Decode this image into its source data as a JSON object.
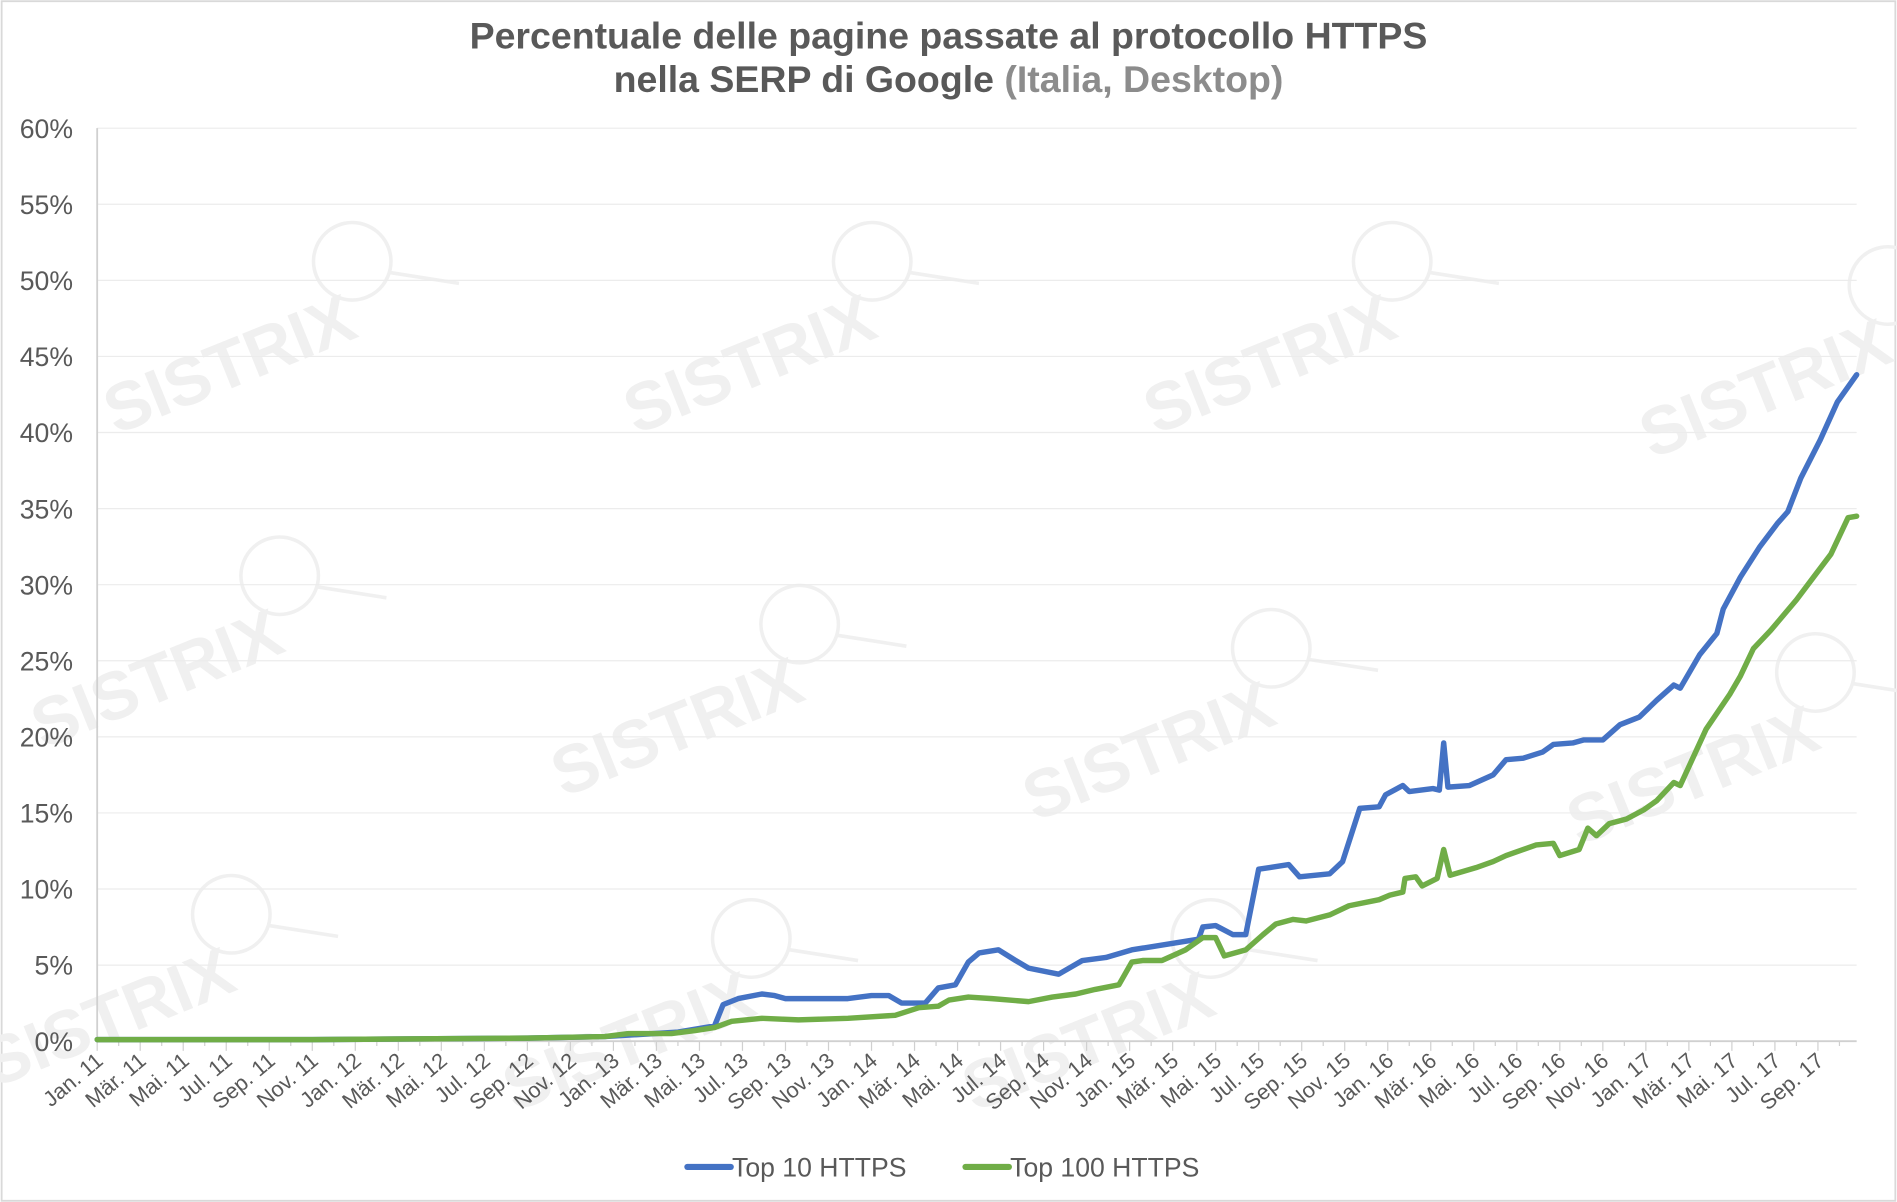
{
  "chart_data": {
    "type": "line",
    "title_line1": "Percentuale delle pagine passate al protocollo HTTPS",
    "title_line2": "nella SERP di Google",
    "title_suffix": " (Italia, Desktop)",
    "watermark": "SISTRIX",
    "xlabel": "",
    "ylabel": "",
    "x_unit": "months since Jan 2011",
    "xlim": [
      0,
      81.8
    ],
    "ylim": [
      0,
      60
    ],
    "y_ticks": [
      "0%",
      "5%",
      "10%",
      "15%",
      "20%",
      "25%",
      "30%",
      "35%",
      "40%",
      "45%",
      "50%",
      "55%",
      "60%"
    ],
    "x_tick_labels": [
      "Jan. 11",
      "Mär. 11",
      "Mai. 11",
      "Jul. 11",
      "Sep. 11",
      "Nov. 11",
      "Jan. 12",
      "Mär. 12",
      "Mai. 12",
      "Jul. 12",
      "Sep. 12",
      "Nov. 12",
      "Jan. 13",
      "Mär. 13",
      "Mai. 13",
      "Jul. 13",
      "Sep. 13",
      "Nov. 13",
      "Jan. 14",
      "Mär. 14",
      "Mai. 14",
      "Jul. 14",
      "Sep. 14",
      "Nov. 14",
      "Jan. 15",
      "Mär. 15",
      "Mai. 15",
      "Jul. 15",
      "Sep. 15",
      "Nov. 15",
      "Jan. 16",
      "Mär. 16",
      "Mai. 16",
      "Jul. 16",
      "Sep. 16",
      "Nov. 16",
      "Jan. 17",
      "Mär. 17",
      "Mai. 17",
      "Jul. 17",
      "Sep. 17"
    ],
    "grid": true,
    "legend_position": "bottom",
    "series": [
      {
        "name": "Top 10 HTTPS",
        "color": "#4472c4",
        "x": [
          0,
          10,
          20,
          23.6,
          27.0,
          28.7,
          29.1,
          29.8,
          30.9,
          31.5,
          32.0,
          34.9,
          36.0,
          36.8,
          37.4,
          38.5,
          39.1,
          39.9,
          40.5,
          41.0,
          41.9,
          42.7,
          43.3,
          44.7,
          45.8,
          46.9,
          48.1,
          51.2,
          51.4,
          52.0,
          52.8,
          53.4,
          54.0,
          55.4,
          55.9,
          57.3,
          57.9,
          58.7,
          59.6,
          59.9,
          60.7,
          61.0,
          62.1,
          62.4,
          62.6,
          62.8,
          63.8,
          64.9,
          65.5,
          66.3,
          67.2,
          67.7,
          68.6,
          69.1,
          70.0,
          70.8,
          71.7,
          72.5,
          73.3,
          73.6,
          74.5,
          75.3,
          75.6,
          76.4,
          77.3,
          78.1,
          78.6,
          79.2,
          80.1,
          80.9,
          81.8
        ],
        "y": [
          0.1,
          0.1,
          0.2,
          0.3,
          0.6,
          1.0,
          2.4,
          2.8,
          3.1,
          3.0,
          2.8,
          2.8,
          3.0,
          3.0,
          2.5,
          2.5,
          3.5,
          3.7,
          5.2,
          5.8,
          6.0,
          5.3,
          4.8,
          4.4,
          5.3,
          5.5,
          6.0,
          6.7,
          7.5,
          7.6,
          7.0,
          7.0,
          11.3,
          11.6,
          10.8,
          11.0,
          11.8,
          15.3,
          15.4,
          16.2,
          16.8,
          16.4,
          16.6,
          16.5,
          19.6,
          16.7,
          16.8,
          17.5,
          18.5,
          18.6,
          19.0,
          19.5,
          19.6,
          19.8,
          19.8,
          20.8,
          21.3,
          22.4,
          23.4,
          23.2,
          25.4,
          26.8,
          28.4,
          30.5,
          32.5,
          34.0,
          34.8,
          37.0,
          39.5,
          42.0,
          43.8
        ]
      },
      {
        "name": "Top 100 HTTPS",
        "color": "#70ad47",
        "x": [
          0,
          10,
          20,
          23.6,
          24.7,
          26.7,
          27.8,
          28.7,
          29.5,
          30.9,
          32.6,
          34.9,
          37.1,
          38.2,
          39.1,
          39.6,
          40.5,
          41.6,
          43.3,
          44.4,
          45.5,
          46.4,
          47.5,
          48.1,
          48.6,
          49.5,
          50.6,
          51.4,
          52.0,
          52.4,
          53.4,
          54.2,
          54.8,
          55.6,
          56.2,
          57.3,
          58.2,
          59.6,
          60.1,
          60.7,
          60.8,
          61.3,
          61.6,
          62.3,
          62.6,
          62.9,
          64.1,
          64.9,
          65.5,
          66.9,
          67.7,
          68.0,
          68.9,
          69.3,
          69.7,
          70.3,
          71.1,
          71.9,
          72.5,
          73.3,
          73.6,
          74.8,
          75.9,
          76.4,
          77.0,
          77.8,
          79.0,
          79.8,
          80.6,
          81.4,
          81.8
        ],
        "y": [
          0.1,
          0.1,
          0.2,
          0.3,
          0.5,
          0.5,
          0.7,
          0.9,
          1.3,
          1.5,
          1.4,
          1.5,
          1.7,
          2.2,
          2.3,
          2.7,
          2.9,
          2.8,
          2.6,
          2.9,
          3.1,
          3.4,
          3.7,
          5.2,
          5.3,
          5.3,
          6.0,
          6.8,
          6.8,
          5.6,
          6.0,
          7.0,
          7.7,
          8.0,
          7.9,
          8.3,
          8.9,
          9.3,
          9.6,
          9.8,
          10.7,
          10.8,
          10.2,
          10.7,
          12.6,
          10.9,
          11.4,
          11.8,
          12.2,
          12.9,
          13.0,
          12.2,
          12.6,
          14.0,
          13.5,
          14.3,
          14.6,
          15.2,
          15.8,
          17.0,
          16.8,
          20.5,
          22.8,
          24.0,
          25.8,
          27.0,
          29.0,
          30.5,
          32.0,
          34.4,
          34.5
        ]
      }
    ]
  }
}
